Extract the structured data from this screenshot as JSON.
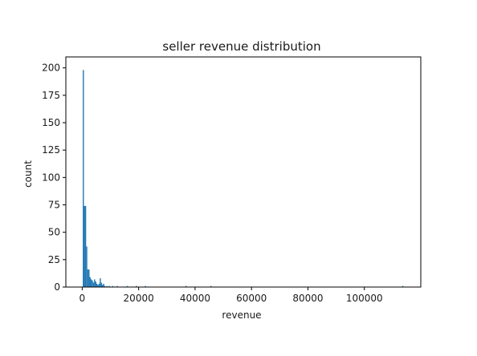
{
  "chart_data": {
    "type": "bar",
    "title": "seller revenue distribution",
    "xlabel": "revenue",
    "ylabel": "count",
    "xlim": [
      -5800,
      120000
    ],
    "ylim": [
      0,
      210
    ],
    "xticks": [
      0,
      20000,
      40000,
      60000,
      80000,
      100000
    ],
    "yticks": [
      0,
      25,
      50,
      75,
      100,
      125,
      150,
      175,
      200
    ],
    "grid": false,
    "legend": "none",
    "colors": {
      "bar": "#1f77b4",
      "axes": "#000000"
    },
    "bins": [
      {
        "x": 400,
        "count": 198
      },
      {
        "x": 800,
        "count": 74
      },
      {
        "x": 1200,
        "count": 74
      },
      {
        "x": 1600,
        "count": 37
      },
      {
        "x": 2000,
        "count": 16
      },
      {
        "x": 2400,
        "count": 16
      },
      {
        "x": 2800,
        "count": 9
      },
      {
        "x": 3200,
        "count": 7
      },
      {
        "x": 3600,
        "count": 6
      },
      {
        "x": 4000,
        "count": 4
      },
      {
        "x": 4400,
        "count": 7
      },
      {
        "x": 4800,
        "count": 5
      },
      {
        "x": 5200,
        "count": 3
      },
      {
        "x": 5600,
        "count": 2
      },
      {
        "x": 6000,
        "count": 3
      },
      {
        "x": 6400,
        "count": 8
      },
      {
        "x": 6800,
        "count": 4
      },
      {
        "x": 7200,
        "count": 2
      },
      {
        "x": 7600,
        "count": 3
      },
      {
        "x": 8000,
        "count": 1
      },
      {
        "x": 8800,
        "count": 1
      },
      {
        "x": 9600,
        "count": 1
      },
      {
        "x": 10800,
        "count": 1
      },
      {
        "x": 12400,
        "count": 1
      },
      {
        "x": 16000,
        "count": 1
      },
      {
        "x": 19200,
        "count": 1
      },
      {
        "x": 22400,
        "count": 1
      },
      {
        "x": 36800,
        "count": 1
      },
      {
        "x": 45600,
        "count": 1
      },
      {
        "x": 113600,
        "count": 1
      }
    ],
    "bin_width": 400
  }
}
